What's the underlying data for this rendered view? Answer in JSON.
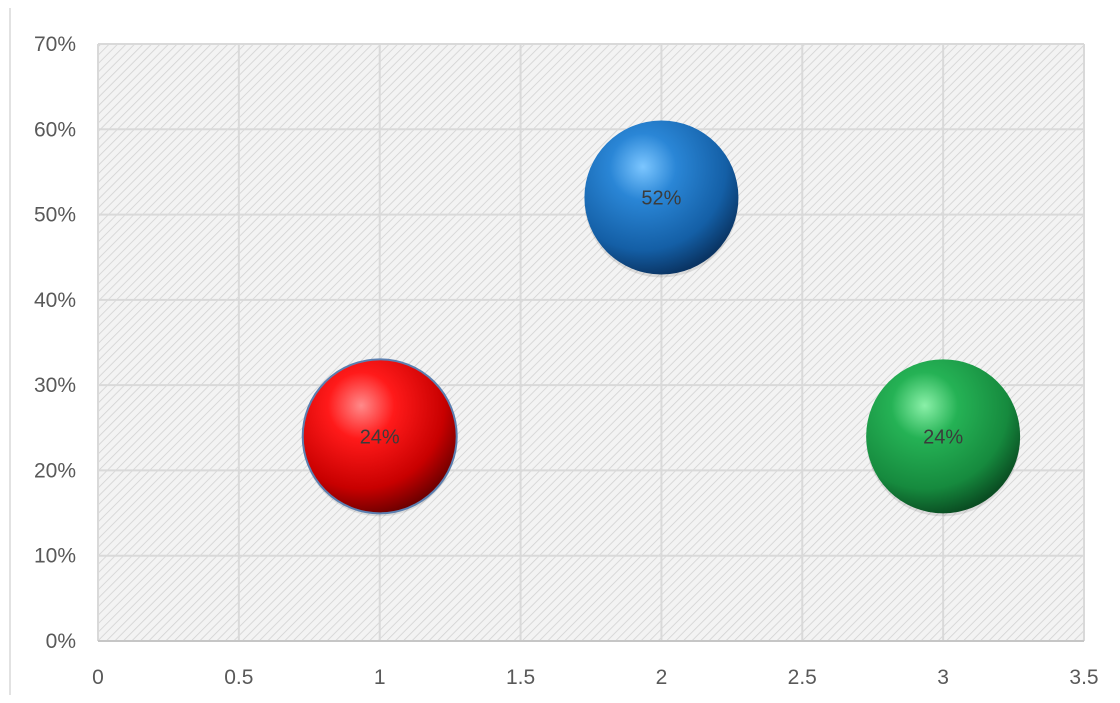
{
  "chart_data": {
    "type": "bubble",
    "title": "",
    "xlabel": "",
    "ylabel": "",
    "xlim": [
      0,
      3.5
    ],
    "ylim": [
      0,
      0.7
    ],
    "x_ticks": [
      0,
      0.5,
      1,
      1.5,
      2,
      2.5,
      3,
      3.5
    ],
    "x_tick_labels": [
      "0",
      "0.5",
      "1",
      "1.5",
      "2",
      "2.5",
      "3",
      "3.5"
    ],
    "y_ticks": [
      0,
      0.1,
      0.2,
      0.3,
      0.4,
      0.5,
      0.6,
      0.7
    ],
    "y_tick_labels": [
      "0%",
      "10%",
      "20%",
      "30%",
      "40%",
      "50%",
      "60%",
      "70%"
    ],
    "grid": true,
    "plot_area_fill": "hatched-light-gray",
    "legend": "none",
    "points": [
      {
        "x": 1,
        "y": 0.24,
        "size": 1,
        "label": "24%",
        "color": "#e00000"
      },
      {
        "x": 2,
        "y": 0.52,
        "size": 1,
        "label": "52%",
        "color": "#1f6fb8"
      },
      {
        "x": 3,
        "y": 0.24,
        "size": 1,
        "label": "24%",
        "color": "#1f9a4a"
      }
    ]
  }
}
